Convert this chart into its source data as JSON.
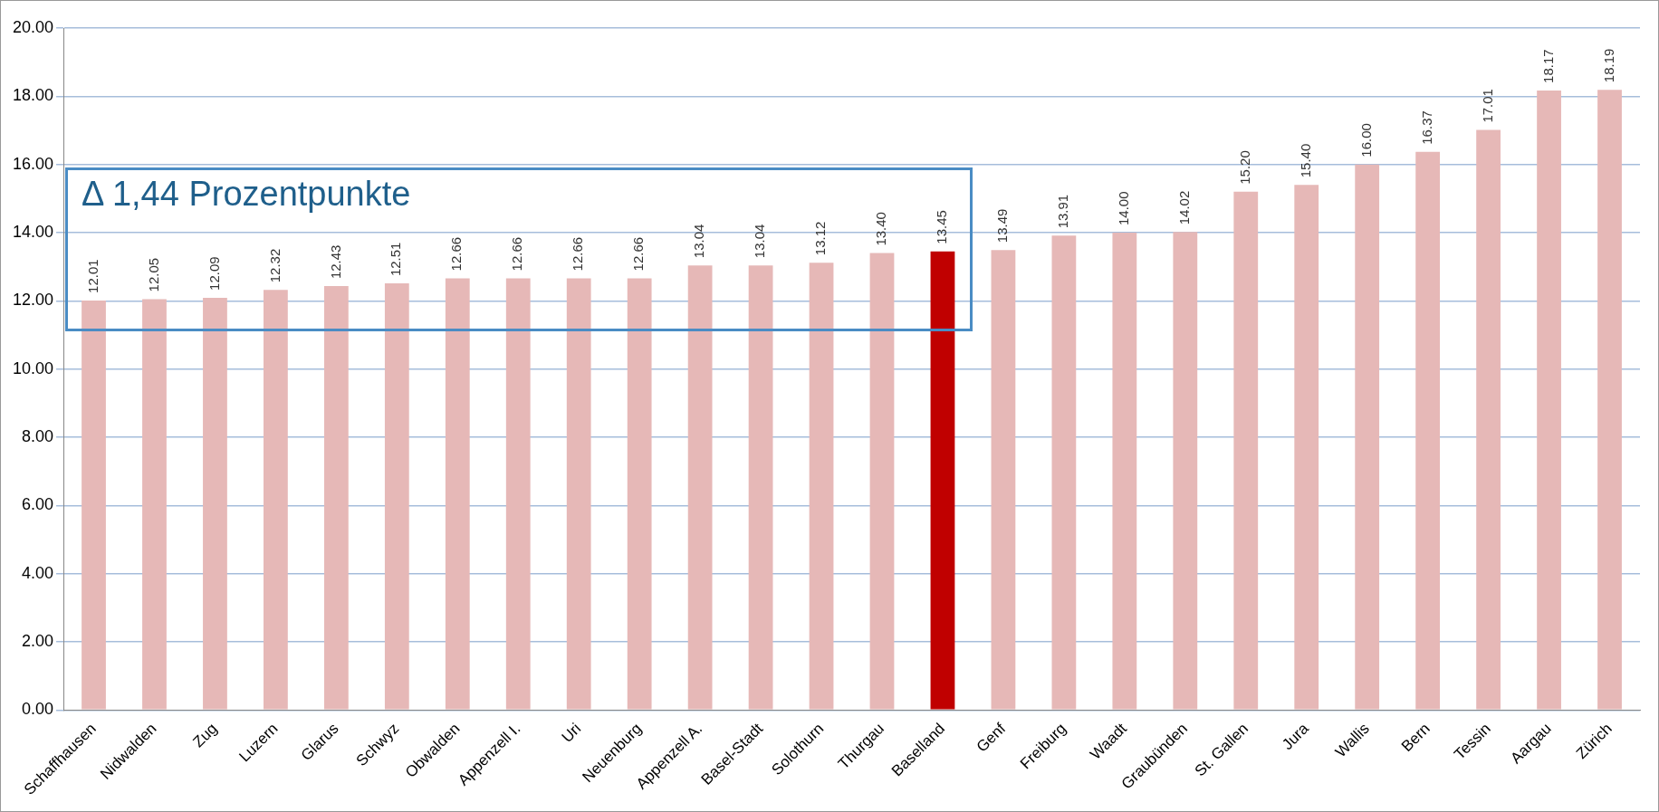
{
  "chart_data": {
    "type": "bar",
    "categories": [
      "Schaffhausen",
      "Nidwalden",
      "Zug",
      "Luzern",
      "Glarus",
      "Schwyz",
      "Obwalden",
      "Appenzell I.",
      "Uri",
      "Neuenburg",
      "Appenzell A.",
      "Basel-Stadt",
      "Solothurn",
      "Thurgau",
      "Baselland",
      "Genf",
      "Freiburg",
      "Waadt",
      "Graubünden",
      "St. Gallen",
      "Jura",
      "Wallis",
      "Bern",
      "Tessin",
      "Aargau",
      "Zürich"
    ],
    "values": [
      12.01,
      12.05,
      12.09,
      12.32,
      12.43,
      12.51,
      12.66,
      12.66,
      12.66,
      12.66,
      13.04,
      13.04,
      13.12,
      13.4,
      13.45,
      13.49,
      13.91,
      14.0,
      14.02,
      15.2,
      15.4,
      16.0,
      16.37,
      17.01,
      18.17,
      18.19
    ],
    "value_labels": [
      "12.01",
      "12.05",
      "12.09",
      "12.32",
      "12.43",
      "12.51",
      "12.66",
      "12.66",
      "12.66",
      "12.66",
      "13.04",
      "13.04",
      "13.12",
      "13.40",
      "13.45",
      "13.49",
      "13.91",
      "14.00",
      "14.02",
      "15.20",
      "15.40",
      "16.00",
      "16.37",
      "17.01",
      "18.17",
      "18.19"
    ],
    "colors": [
      "#e6b8b7",
      "#e6b8b7",
      "#e6b8b7",
      "#e6b8b7",
      "#e6b8b7",
      "#e6b8b7",
      "#e6b8b7",
      "#e6b8b7",
      "#e6b8b7",
      "#e6b8b7",
      "#e6b8b7",
      "#e6b8b7",
      "#e6b8b7",
      "#e6b8b7",
      "#c00000",
      "#e6b8b7",
      "#e6b8b7",
      "#e6b8b7",
      "#e6b8b7",
      "#e6b8b7",
      "#e6b8b7",
      "#e6b8b7",
      "#e6b8b7",
      "#e6b8b7",
      "#e6b8b7",
      "#e6b8b7"
    ],
    "ylim": [
      0,
      20
    ],
    "yticks": [
      {
        "value": 0,
        "label": "0.00"
      },
      {
        "value": 2,
        "label": "2.00"
      },
      {
        "value": 4,
        "label": "4.00"
      },
      {
        "value": 6,
        "label": "6.00"
      },
      {
        "value": 8,
        "label": "8.00"
      },
      {
        "value": 10,
        "label": "10.00"
      },
      {
        "value": 12,
        "label": "12.00"
      },
      {
        "value": 14,
        "label": "14.00"
      },
      {
        "value": 16,
        "label": "16.00"
      },
      {
        "value": 18,
        "label": "18.00"
      },
      {
        "value": 20,
        "label": "20.00"
      }
    ],
    "grid": "y",
    "legend": false,
    "annotations": [
      "Δ 1,44 Prozentpunkte"
    ]
  }
}
